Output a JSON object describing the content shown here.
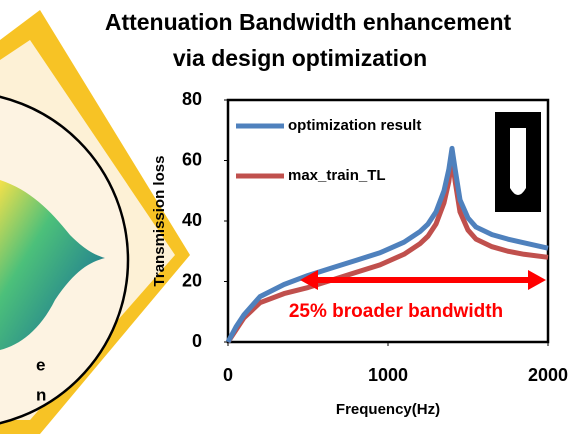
{
  "chart_data": {
    "type": "line",
    "title": [
      "Attenuation Bandwidth enhancement",
      "via design optimization"
    ],
    "x_label": "Frequency(Hz)",
    "y_label": "Transmission loss",
    "x": [
      0,
      50,
      100,
      200,
      350,
      500,
      650,
      800,
      950,
      1100,
      1200,
      1250,
      1300,
      1350,
      1380,
      1400,
      1420,
      1450,
      1500,
      1550,
      1650,
      1750,
      1850,
      2000
    ],
    "series": [
      {
        "name": "optimization result",
        "color": "#4f81bd",
        "values": [
          0,
          5,
          9,
          15,
          19,
          22,
          24.5,
          27,
          29.5,
          33,
          36.5,
          39,
          43,
          50,
          57,
          64,
          57,
          47,
          41,
          38,
          35.5,
          34,
          32.8,
          31
        ]
      },
      {
        "name": "max_train_TL",
        "color": "#c0504d",
        "values": [
          0,
          4,
          8,
          13,
          16,
          18,
          20.5,
          23,
          25.5,
          29,
          32.5,
          35,
          39,
          46,
          53,
          61,
          53,
          43,
          37,
          34,
          31.5,
          30,
          29,
          28
        ]
      }
    ],
    "xlim": [
      0,
      2000
    ],
    "xticks": [
      0,
      1000,
      2000
    ],
    "ylim": [
      0,
      80
    ],
    "yticks": [
      0,
      20,
      40,
      60,
      80
    ],
    "annotation": "25% broader bandwidth",
    "annotation_color": "#ff0000",
    "legend_position": "upper left",
    "left_panel_text": [
      "e",
      "n"
    ]
  }
}
